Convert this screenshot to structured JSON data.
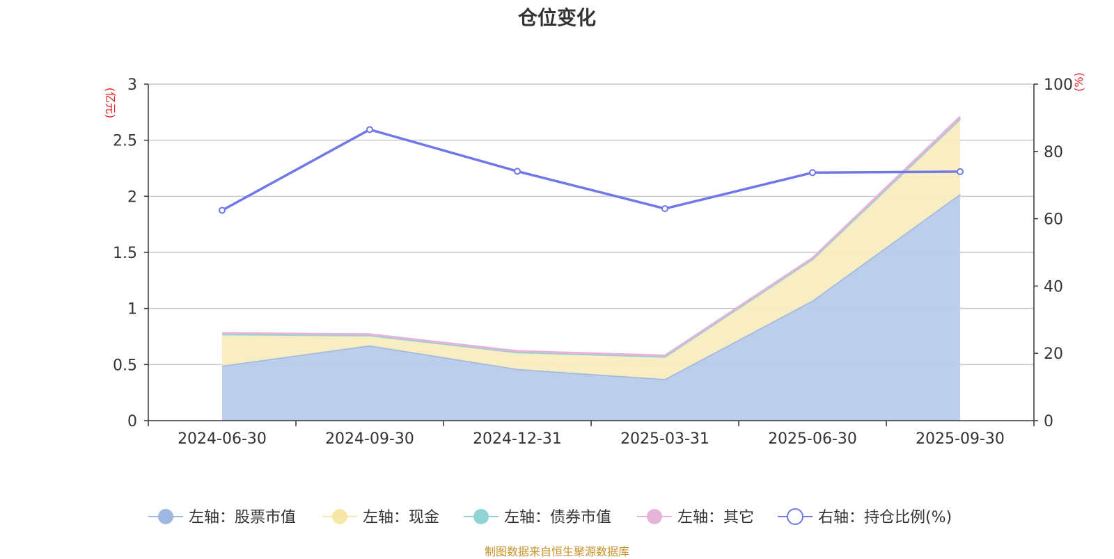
{
  "title": "仓位变化",
  "source": "制图数据来自恒生聚源数据库",
  "chart_data": {
    "type": "area",
    "x": [
      "2024-06-30",
      "2024-09-30",
      "2024-12-31",
      "2025-03-31",
      "2025-06-30",
      "2025-09-30"
    ],
    "left_axis": {
      "unit": "(亿元)",
      "ylim": [
        0,
        3
      ],
      "ticks": [
        "0",
        "0.5",
        "1",
        "1.5",
        "2",
        "2.5",
        "3"
      ]
    },
    "right_axis": {
      "unit": "(%)",
      "ylim": [
        0,
        100
      ],
      "ticks": [
        "0",
        "20",
        "40",
        "60",
        "80",
        "100"
      ]
    },
    "series": [
      {
        "name": "左轴：股票市值",
        "axis": "left",
        "type": "area",
        "color": "#9db7e0",
        "fill": "#b8cbea",
        "values": [
          0.49,
          0.67,
          0.46,
          0.37,
          1.07,
          2.02
        ]
      },
      {
        "name": "左轴：现金",
        "axis": "left",
        "type": "area",
        "color": "#f6e6a7",
        "fill": "#f8ecc0",
        "values": [
          0.28,
          0.09,
          0.15,
          0.2,
          0.37,
          0.67
        ]
      },
      {
        "name": "左轴：债券市值",
        "axis": "left",
        "type": "area",
        "color": "#8fd3d3",
        "fill": "#8fd3d3",
        "values": [
          0,
          0,
          0,
          0,
          0,
          0
        ]
      },
      {
        "name": "左轴：其它",
        "axis": "left",
        "type": "area",
        "color": "#e6b3d9",
        "fill": "#e6b3d9",
        "values": [
          0.01,
          0.01,
          0.01,
          0.01,
          0.01,
          0.02
        ]
      },
      {
        "name": "右轴：持仓比例(%)",
        "axis": "right",
        "type": "line",
        "color": "#7078e8",
        "values": [
          62.5,
          86.5,
          74.1,
          63.0,
          73.7,
          74.0
        ]
      }
    ],
    "grid": true,
    "legend": "bottom"
  }
}
